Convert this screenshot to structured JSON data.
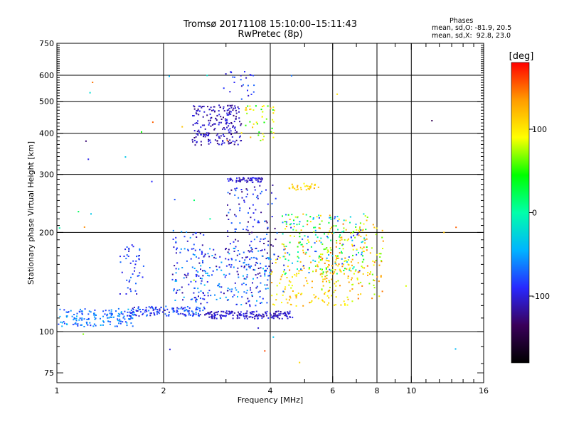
{
  "header": {
    "title_line1": "Tromsø 20171108 15:10:00–15:11:43",
    "title_line2": "RwPretec (8p)",
    "phase_heading": "Phases",
    "phase_o": "mean, sd,O: -81.9, 20.5",
    "phase_x": "mean, sd,X:  92.8, 23.0"
  },
  "colorbar": {
    "unit_label": "[deg]",
    "ticks": [
      {
        "value": 100,
        "label": "100"
      },
      {
        "value": 0,
        "label": "0"
      },
      {
        "value": -100,
        "label": "-100"
      }
    ],
    "range": [
      -180,
      180
    ],
    "stops": [
      "#000000",
      "#3a005a",
      "#2828ff",
      "#00b4ff",
      "#00ffaa",
      "#00ff00",
      "#ffff00",
      "#ff9c00",
      "#ff0000"
    ]
  },
  "chart_data": {
    "type": "scatter",
    "title": "Tromsø 20171108 15:10:00–15:11:43",
    "subtitle": "RwPretec (8p)",
    "xlabel": "Frequency [MHz]",
    "ylabel": "Stationary phase Virtual Height [km]",
    "x_scale": "log",
    "y_scale": "log",
    "xlim": [
      1,
      16
    ],
    "ylim": [
      70,
      750
    ],
    "grid": true,
    "x_ticks": [
      {
        "value": 1,
        "label": "1"
      },
      {
        "value": 2,
        "label": "2"
      },
      {
        "value": 4,
        "label": "4"
      },
      {
        "value": 6,
        "label": "6"
      },
      {
        "value": 8,
        "label": "8"
      },
      {
        "value": 10,
        "label": "10"
      },
      {
        "value": 16,
        "label": "16"
      }
    ],
    "x_minor": [
      3,
      5,
      7,
      9,
      11,
      12,
      13,
      14,
      15
    ],
    "y_ticks": [
      {
        "value": 75,
        "label": "75"
      },
      {
        "value": 100,
        "label": "100"
      },
      {
        "value": 200,
        "label": "200"
      },
      {
        "value": 300,
        "label": "300"
      },
      {
        "value": 400,
        "label": "400"
      },
      {
        "value": 500,
        "label": "500"
      },
      {
        "value": 600,
        "label": "600"
      },
      {
        "value": 750,
        "label": "750"
      }
    ],
    "x_grid": [
      2,
      4,
      6,
      8,
      10
    ],
    "y_grid": [
      100,
      200,
      300,
      400,
      500,
      600
    ],
    "color_by": "phase [deg]",
    "clusters": [
      {
        "x": [
          1.0,
          1.65
        ],
        "y": [
          104,
          118
        ],
        "c": [
          -90,
          -40
        ],
        "n": 160
      },
      {
        "x": [
          1.6,
          2.6
        ],
        "y": [
          112,
          120
        ],
        "c": [
          -110,
          -60
        ],
        "n": 130
      },
      {
        "x": [
          2.6,
          4.6
        ],
        "y": [
          110,
          116
        ],
        "c": [
          -120,
          -90
        ],
        "n": 170
      },
      {
        "x": [
          1.5,
          1.75
        ],
        "y": [
          130,
          185
        ],
        "c": [
          -110,
          -60
        ],
        "n": 45
      },
      {
        "x": [
          2.1,
          2.6
        ],
        "y": [
          125,
          205
        ],
        "c": [
          -120,
          -40
        ],
        "n": 90
      },
      {
        "x": [
          2.4,
          3.3
        ],
        "y": [
          370,
          490
        ],
        "c": [
          -130,
          -90
        ],
        "n": 210
      },
      {
        "x": [
          2.9,
          3.6
        ],
        "y": [
          510,
          620
        ],
        "c": [
          -110,
          -70
        ],
        "n": 25
      },
      {
        "x": [
          3.0,
          3.8
        ],
        "y": [
          285,
          295
        ],
        "c": [
          -120,
          -90
        ],
        "n": 60
      },
      {
        "x": [
          3.3,
          4.1
        ],
        "y": [
          380,
          490
        ],
        "c": [
          40,
          130
        ],
        "n": 45
      },
      {
        "x": [
          3.0,
          4.2
        ],
        "y": [
          150,
          280
        ],
        "c": [
          -130,
          -60
        ],
        "n": 150
      },
      {
        "x": [
          2.4,
          4.0
        ],
        "y": [
          120,
          180
        ],
        "c": [
          -120,
          -40
        ],
        "n": 180
      },
      {
        "x": [
          4.0,
          6.8
        ],
        "y": [
          120,
          170
        ],
        "c": [
          80,
          140
        ],
        "n": 130
      },
      {
        "x": [
          4.3,
          7.5
        ],
        "y": [
          150,
          230
        ],
        "c": [
          -100,
          150
        ],
        "n": 240
      },
      {
        "x": [
          4.5,
          5.5
        ],
        "y": [
          270,
          285
        ],
        "c": [
          90,
          130
        ],
        "n": 30
      },
      {
        "x": [
          5.5,
          8.3
        ],
        "y": [
          125,
          215
        ],
        "c": [
          60,
          150
        ],
        "n": 140
      },
      {
        "x": [
          1.0,
          14.0
        ],
        "y": [
          80,
          650
        ],
        "c": [
          -140,
          160
        ],
        "n": 40
      }
    ]
  }
}
